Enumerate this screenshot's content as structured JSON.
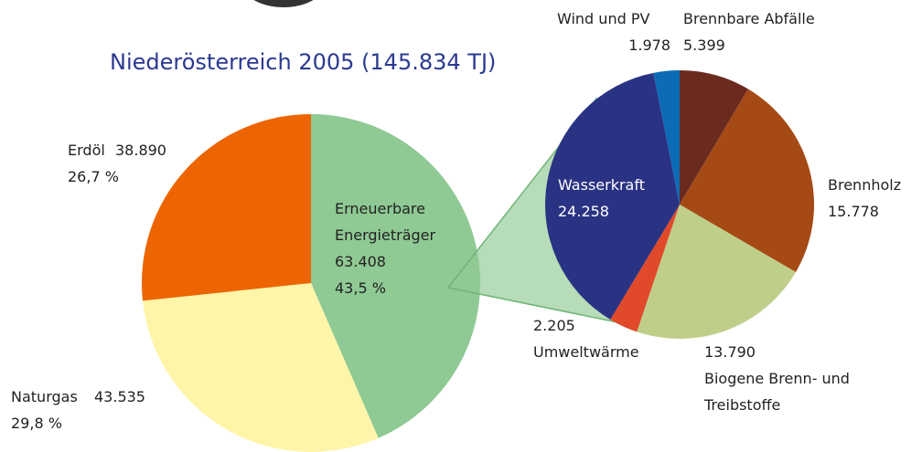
{
  "chart_data": [
    {
      "type": "pie",
      "title": "Niederösterreich 2005 (145.834 TJ)",
      "categories": [
        "Erneuerbare Energieträger",
        "Naturgas",
        "Erdöl"
      ],
      "values": [
        63408,
        43535,
        38890
      ],
      "value_labels": [
        "63.408",
        "43.535",
        "38.890"
      ],
      "percent_labels": [
        "43,5 %",
        "29,8 %",
        "26,7 %"
      ],
      "colors": [
        "#8fc994",
        "#fff5a8",
        "#ec6500"
      ]
    },
    {
      "type": "pie",
      "categories": [
        "Brennbare Abfälle",
        "Brennholz",
        "Biogene Brenn- und Treibstoffe",
        "Umweltwärme",
        "Wasserkraft",
        "Wind und PV"
      ],
      "values": [
        5399,
        15778,
        13790,
        2205,
        24258,
        1978
      ],
      "value_labels": [
        "5.399",
        "15.778",
        "13.790",
        "2.205",
        "24.258",
        "1.978"
      ],
      "colors": [
        "#6b2a1e",
        "#a54a15",
        "#bfcf8a",
        "#e04a2a",
        "#2a3383",
        "#0c6bb5"
      ]
    }
  ]
}
